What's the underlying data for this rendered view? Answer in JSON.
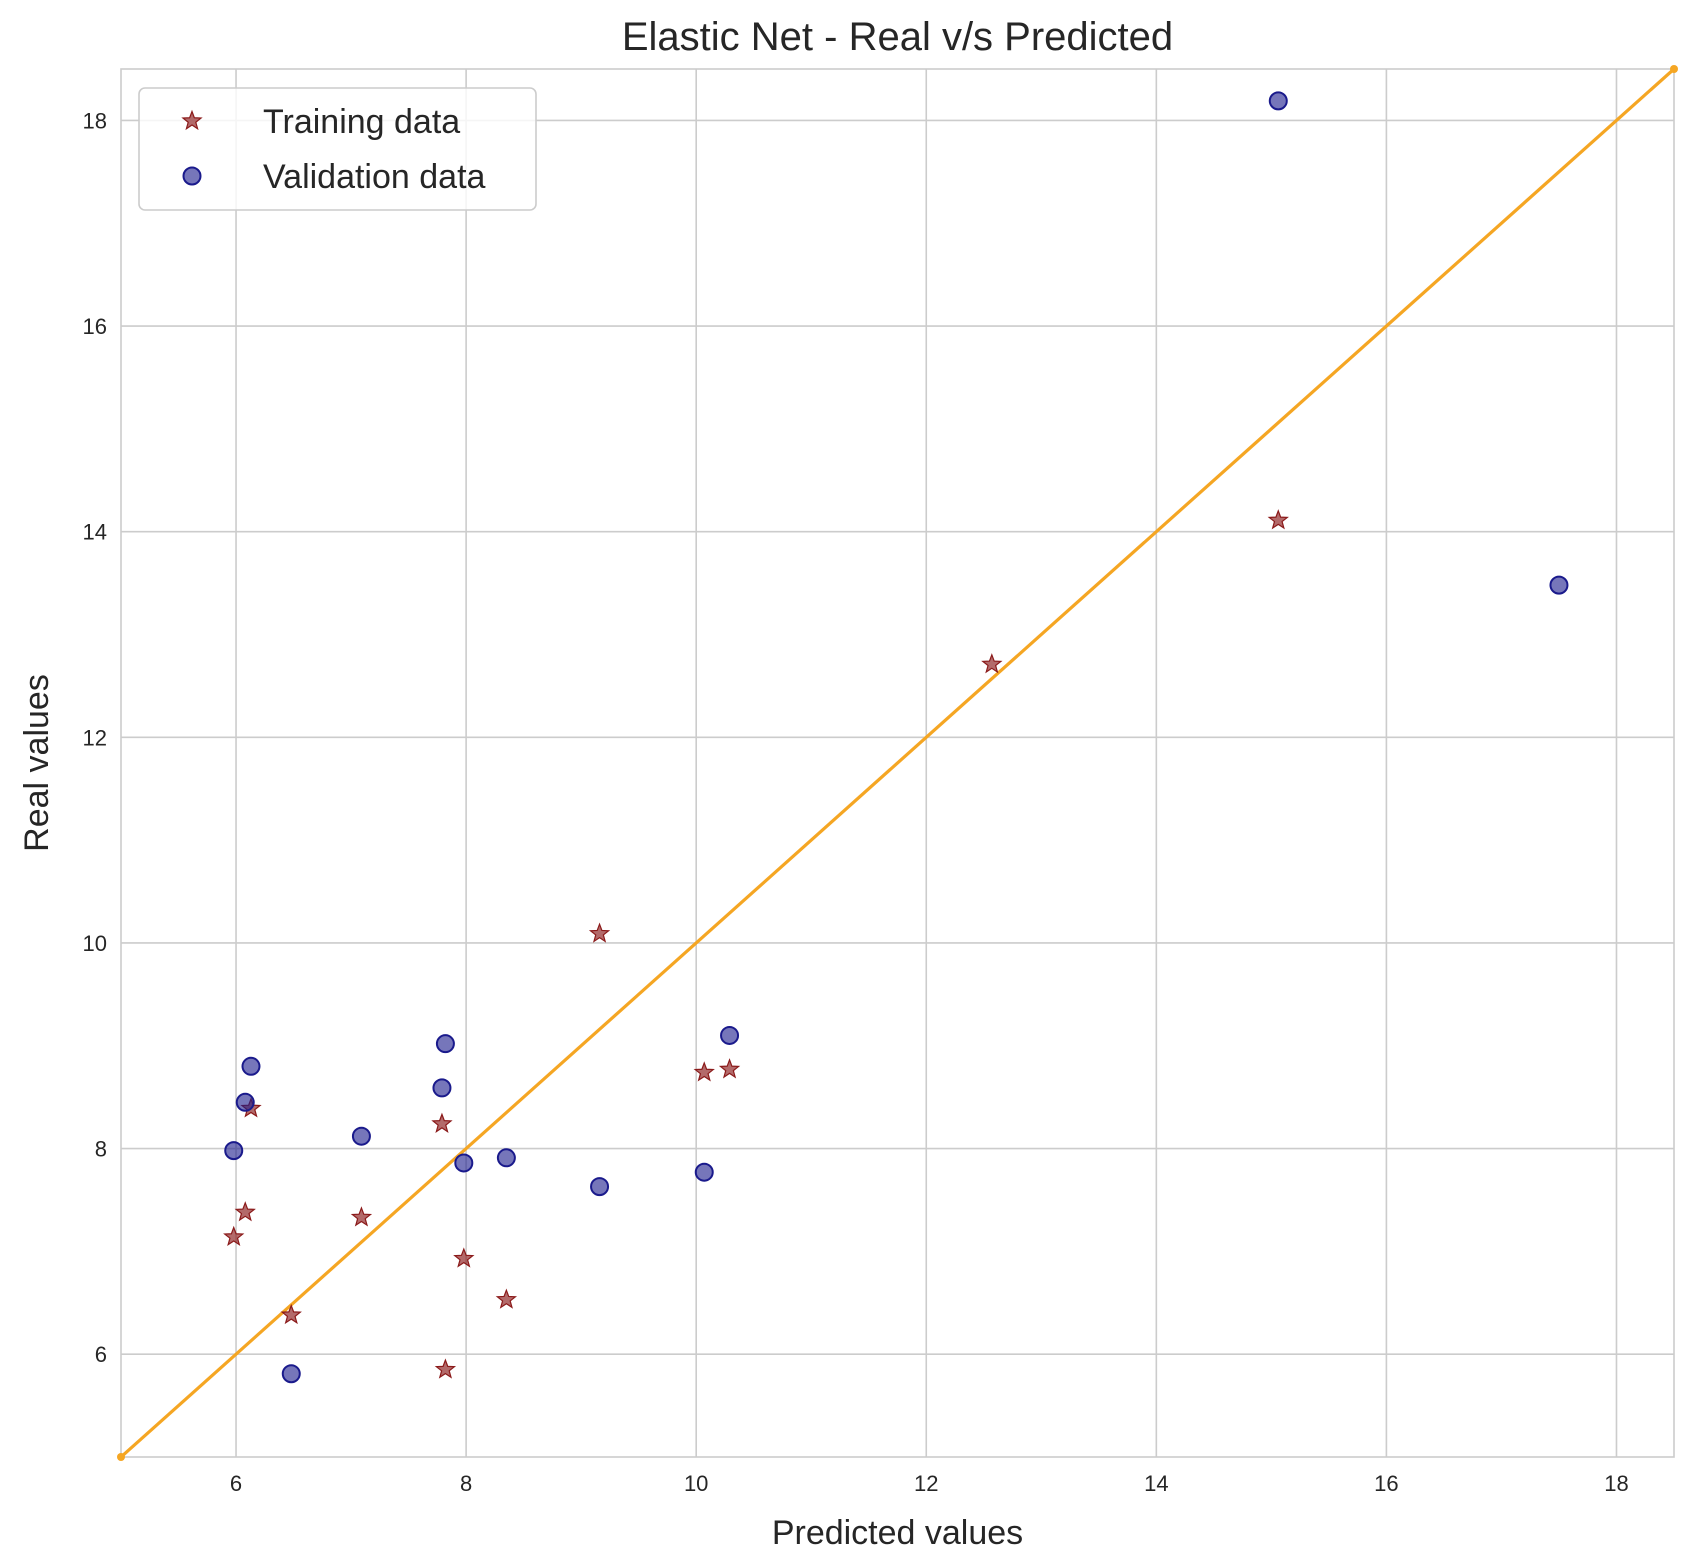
{
  "chart_data": {
    "type": "scatter",
    "title": "Elastic Net - Real v/s Predicted",
    "xlabel": "Predicted values",
    "ylabel": "Real values",
    "xlim": [
      5,
      18.5
    ],
    "ylim": [
      5,
      18.5
    ],
    "xticks": [
      6,
      8,
      10,
      12,
      14,
      16,
      18
    ],
    "yticks": [
      6,
      8,
      10,
      12,
      14,
      16,
      18
    ],
    "grid": true,
    "legend_position": "top-left",
    "series": [
      {
        "name": "Training data",
        "marker": "star",
        "color": "#8b1a1a",
        "points": [
          [
            5.98,
            7.14
          ],
          [
            6.08,
            7.38
          ],
          [
            6.13,
            8.39
          ],
          [
            6.48,
            6.38
          ],
          [
            7.09,
            7.33
          ],
          [
            7.79,
            8.24
          ],
          [
            7.82,
            5.85
          ],
          [
            7.98,
            6.93
          ],
          [
            8.35,
            6.53
          ],
          [
            9.16,
            10.09
          ],
          [
            10.07,
            8.74
          ],
          [
            10.29,
            8.77
          ],
          [
            12.57,
            12.71
          ],
          [
            15.06,
            14.11
          ]
        ]
      },
      {
        "name": "Validation data",
        "marker": "circle",
        "color": "#1a1a8c",
        "points": [
          [
            5.98,
            7.98
          ],
          [
            6.08,
            8.45
          ],
          [
            6.13,
            8.8
          ],
          [
            6.48,
            5.81
          ],
          [
            7.09,
            8.12
          ],
          [
            7.79,
            8.59
          ],
          [
            7.82,
            9.02
          ],
          [
            7.98,
            7.86
          ],
          [
            8.35,
            7.91
          ],
          [
            9.16,
            7.63
          ],
          [
            10.07,
            7.77
          ],
          [
            10.29,
            9.1
          ],
          [
            15.06,
            18.19
          ],
          [
            17.5,
            13.48
          ]
        ]
      },
      {
        "marker": "line",
        "color": "#f5a623",
        "points": [
          [
            5,
            5
          ],
          [
            18.5,
            18.5
          ]
        ]
      }
    ]
  }
}
